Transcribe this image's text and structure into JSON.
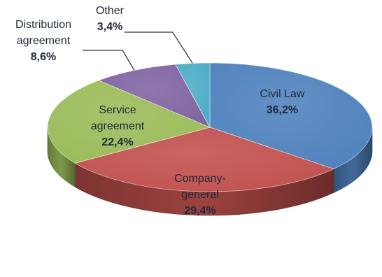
{
  "chart_data": {
    "type": "pie",
    "title": "",
    "categories": [
      "Civil Law",
      "Company-general",
      "Service agreement",
      "Distribution agreement",
      "Other"
    ],
    "label_lines": [
      [
        "Civil Law"
      ],
      [
        "Company-",
        "general"
      ],
      [
        "Service",
        "agreement"
      ],
      [
        "Distribution",
        "agreement"
      ],
      [
        "Other"
      ]
    ],
    "values": [
      36.2,
      29.4,
      22.4,
      8.6,
      3.4
    ],
    "value_labels": [
      "36,2%",
      "29,4%",
      "22,4%",
      "8,6%",
      "3,4%"
    ],
    "colors": [
      "#4F81BD",
      "#C0504D",
      "#9BBB59",
      "#8064A2",
      "#4BACC6"
    ],
    "style": "3d-pie",
    "legend": "none"
  }
}
